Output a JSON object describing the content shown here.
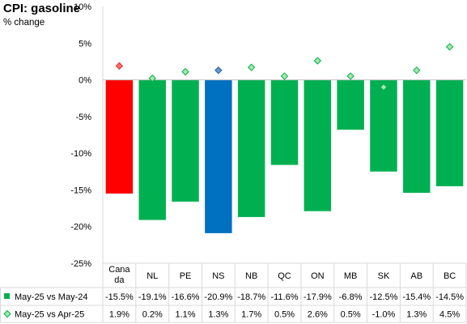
{
  "chart_data": {
    "type": "bar",
    "title": "CPI: gasoline",
    "subtitle": "% change",
    "categories": [
      "Cana\nda",
      "NL",
      "PE",
      "NS",
      "NB",
      "QC",
      "ON",
      "MB",
      "SK",
      "AB",
      "BC"
    ],
    "y_ticks": [
      "-25%",
      "-20%",
      "-15%",
      "-10%",
      "-5%",
      "0%",
      "5%",
      "10%"
    ],
    "ylim": [
      -25,
      10
    ],
    "grid": false,
    "legend_position": "table-bottom",
    "series": [
      {
        "name": "May-25 vs May-24",
        "kind": "bar",
        "values": [
          -15.5,
          -19.1,
          -16.6,
          -20.9,
          -18.7,
          -11.6,
          -17.9,
          -6.8,
          -12.5,
          -15.4,
          -14.5
        ],
        "labels": [
          "-15.5%",
          "-19.1%",
          "-16.6%",
          "-20.9%",
          "-18.7%",
          "-11.6%",
          "-17.9%",
          "-6.8%",
          "-12.5%",
          "-15.4%",
          "-14.5%"
        ]
      },
      {
        "name": "May-25 vs Apr-25",
        "kind": "diamond",
        "values": [
          1.9,
          0.2,
          1.1,
          1.3,
          1.7,
          0.5,
          2.6,
          0.5,
          -1.0,
          1.3,
          4.5
        ],
        "labels": [
          "1.9%",
          "0.2%",
          "1.1%",
          "1.3%",
          "1.7%",
          "0.5%",
          "2.6%",
          "0.5%",
          "-1.0%",
          "1.3%",
          "4.5%"
        ]
      }
    ],
    "colors": {
      "bar_default": "#00b050",
      "bar_canada": "#ff0000",
      "bar_ns": "#0070c0",
      "diamond_fill": "#a8e6a8",
      "diamond_stroke": "#00b050",
      "diamond_canada_fill": "#ff7070",
      "diamond_canada_stroke": "#e03030",
      "diamond_ns_fill": "#5b9bd5",
      "diamond_ns_stroke": "#2f5597"
    }
  }
}
